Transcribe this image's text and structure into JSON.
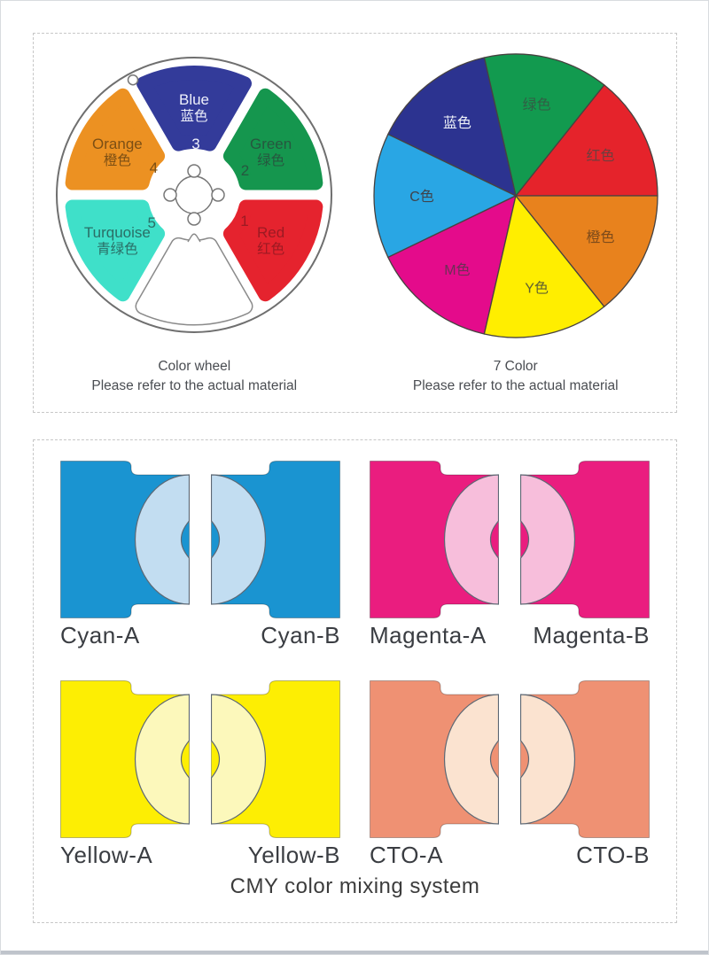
{
  "color_wheel": {
    "caption_title": "Color wheel",
    "caption_note": "Please refer to the actual material",
    "segments": [
      {
        "name_en": "Blue",
        "name_zh": "蓝色",
        "number": "3",
        "color": "#333b9a",
        "text_color": "#eef0fb",
        "open": false
      },
      {
        "name_en": "Green",
        "name_zh": "绿色",
        "number": "2",
        "color": "#15964e",
        "text_color": "#26573f",
        "open": false
      },
      {
        "name_en": "Red",
        "name_zh": "红色",
        "number": "1",
        "color": "#e5232e",
        "text_color": "#9c1a23",
        "open": false
      },
      {
        "name_en": "",
        "name_zh": "",
        "number": "",
        "color": "#ffffff",
        "text_color": "",
        "open": true
      },
      {
        "name_en": "Turquoise",
        "name_zh": "青绿色",
        "number": "5",
        "color": "#3fe0c9",
        "text_color": "#2a6e66",
        "open": false
      },
      {
        "name_en": "Orange",
        "name_zh": "橙色",
        "number": "4",
        "color": "#ec9122",
        "text_color": "#7c4f14",
        "open": false
      }
    ]
  },
  "seven_color": {
    "caption_title": "7 Color",
    "caption_note": "Please refer to the actual material",
    "slices": [
      {
        "label": "红色",
        "color": "#e5232b",
        "label_color": "#6f3e3e"
      },
      {
        "label": "绿色",
        "color": "#129a4f",
        "label_color": "#315e45"
      },
      {
        "label": "蓝色",
        "color": "#2c3390",
        "label_color": "#eef1f8"
      },
      {
        "label": "C色",
        "color": "#29a6e4",
        "label_color": "#3f434b"
      },
      {
        "label": "M色",
        "color": "#e40b8b",
        "label_color": "#6d2f56"
      },
      {
        "label": "Y色",
        "color": "#ffee00",
        "label_color": "#5f6030"
      },
      {
        "label": "橙色",
        "color": "#e8821d",
        "label_color": "#7d4b1b"
      }
    ]
  },
  "cmy": {
    "title": "CMY color mixing system",
    "swatches": [
      {
        "label": "Cyan-A",
        "variant": "A",
        "color": "#1a94d1",
        "flag_color": "#c2ddf1"
      },
      {
        "label": "Cyan-B",
        "variant": "B",
        "color": "#1a94d1",
        "flag_color": "#c2ddf1"
      },
      {
        "label": "Magenta-A",
        "variant": "A",
        "color": "#ea1d7f",
        "flag_color": "#f7bedb"
      },
      {
        "label": "Magenta-B",
        "variant": "B",
        "color": "#ea1d7f",
        "flag_color": "#f7bedb"
      },
      {
        "label": "Yellow-A",
        "variant": "A",
        "color": "#fdee03",
        "flag_color": "#fcf8bb"
      },
      {
        "label": "Yellow-B",
        "variant": "B",
        "color": "#fdee03",
        "flag_color": "#fcf8bb"
      },
      {
        "label": "CTO-A",
        "variant": "A",
        "color": "#ef9173",
        "flag_color": "#fbe3d0"
      },
      {
        "label": "CTO-B",
        "variant": "B",
        "color": "#ef9173",
        "flag_color": "#fbe3d0"
      }
    ]
  },
  "chart_data": {
    "type": "pie",
    "title": "7 Color",
    "labels": [
      "红色",
      "绿色",
      "蓝色",
      "C色",
      "M色",
      "Y色",
      "橙色"
    ],
    "values": [
      1,
      1,
      1,
      1,
      1,
      1,
      1
    ],
    "colors": [
      "#e5232b",
      "#129a4f",
      "#2c3390",
      "#29a6e4",
      "#e40b8b",
      "#ffee00",
      "#e8821d"
    ],
    "legend_position": "labels-inside",
    "note_rendered_on_page": "Please refer to the actual material"
  }
}
